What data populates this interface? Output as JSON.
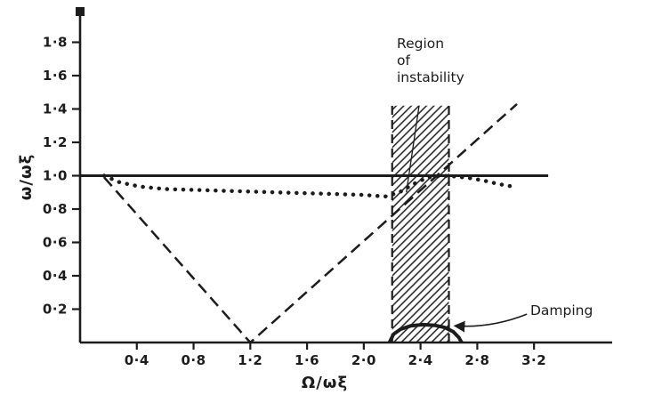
{
  "figure": {
    "background": "#ffffff",
    "ink": "#1c1c1c"
  },
  "chart_data": {
    "type": "line",
    "title": "",
    "xlabel": "Ω/ωξ",
    "ylabel": "ω/ωξ",
    "xlim": [
      0,
      3.5
    ],
    "ylim": [
      0,
      2.0
    ],
    "grid": false,
    "legend": "none",
    "x_ticks": {
      "values": [
        0.4,
        0.8,
        1.2,
        1.6,
        2.0,
        2.4,
        2.8,
        3.2
      ],
      "labels": [
        "0·4",
        "0·8",
        "1·2",
        "1·6",
        "2·0",
        "2·4",
        "2·8",
        "3·2"
      ]
    },
    "y_ticks": {
      "values": [
        0.2,
        0.4,
        0.6,
        0.8,
        1.0,
        1.2,
        1.4,
        1.6,
        1.8
      ],
      "labels": [
        "0·2",
        "0·4",
        "0·6",
        "0·8",
        "1·0",
        "1·2",
        "1·4",
        "1·6",
        "1·8"
      ]
    },
    "series": [
      {
        "name": "unity-frequency-line",
        "style": "solid",
        "width": 3,
        "points": [
          [
            0,
            1.0
          ],
          [
            3.3,
            1.0
          ]
        ]
      },
      {
        "name": "dotted-frequency-curve",
        "style": "dotted",
        "width": 4.5,
        "points": [
          [
            0.17,
            1.0
          ],
          [
            0.28,
            0.96
          ],
          [
            0.42,
            0.935
          ],
          [
            0.6,
            0.92
          ],
          [
            0.8,
            0.915
          ],
          [
            1.0,
            0.91
          ],
          [
            1.2,
            0.905
          ],
          [
            1.4,
            0.9
          ],
          [
            1.6,
            0.895
          ],
          [
            1.8,
            0.89
          ],
          [
            2.0,
            0.885
          ],
          [
            2.15,
            0.875
          ],
          [
            2.25,
            0.9
          ],
          [
            2.35,
            0.95
          ],
          [
            2.45,
            0.99
          ],
          [
            2.55,
            1.0
          ],
          [
            2.65,
            0.995
          ],
          [
            2.75,
            0.985
          ],
          [
            2.85,
            0.97
          ],
          [
            2.95,
            0.95
          ],
          [
            3.05,
            0.935
          ]
        ]
      },
      {
        "name": "dashed-frequency-line",
        "style": "dashed",
        "width": 2.5,
        "points": [
          [
            0.17,
            0.99
          ],
          [
            1.2,
            0.0
          ],
          [
            3.08,
            1.43
          ]
        ]
      },
      {
        "name": "damping-curve",
        "style": "solid",
        "width": 4,
        "points": [
          [
            2.18,
            0.0
          ],
          [
            2.21,
            0.05
          ],
          [
            2.26,
            0.08
          ],
          [
            2.33,
            0.1
          ],
          [
            2.42,
            0.107
          ],
          [
            2.5,
            0.103
          ],
          [
            2.57,
            0.09
          ],
          [
            2.63,
            0.065
          ],
          [
            2.67,
            0.03
          ],
          [
            2.69,
            0.0
          ]
        ]
      }
    ],
    "instability_band": {
      "x_start": 2.2,
      "x_end": 2.6,
      "y_start": 0,
      "y_end": 1.42,
      "hatched": true
    },
    "annotations": [
      {
        "name": "region-of-instability",
        "text": "Region\nof\ninstability",
        "leader_from": [
          2.39,
          1.42
        ],
        "leader_to": [
          2.3,
          0.9
        ]
      },
      {
        "name": "damping",
        "text": "Damping",
        "arrow_from": [
          3.15,
          0.17
        ],
        "arrow_to": [
          2.64,
          0.1
        ]
      }
    ]
  }
}
